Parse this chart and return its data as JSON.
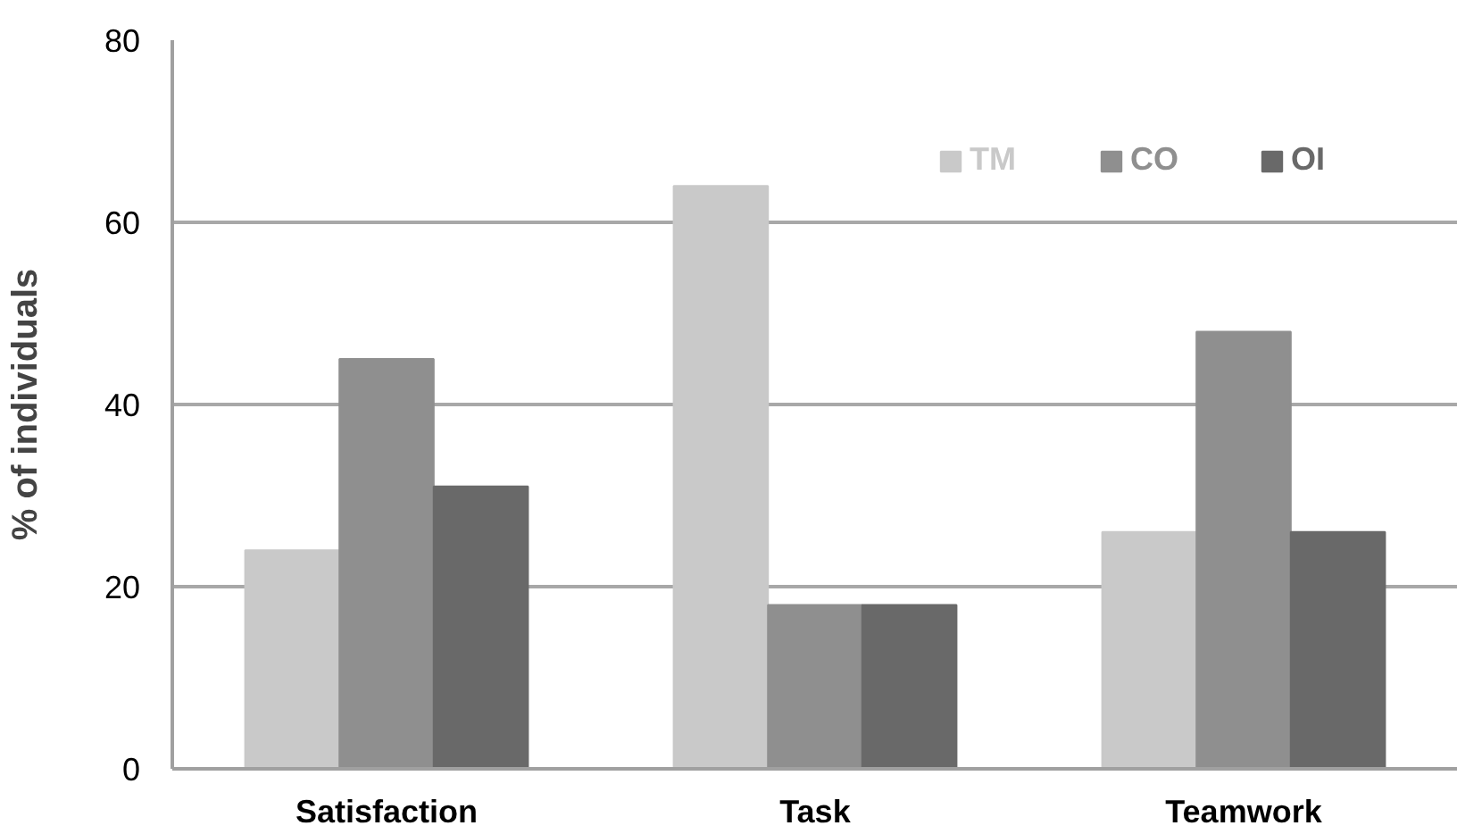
{
  "chart_data": {
    "type": "bar",
    "ylabel": "% of individuals",
    "categories": [
      "Satisfaction",
      "Task",
      "Teamwork"
    ],
    "series": [
      {
        "name": "TM",
        "color": "#c9c9c9",
        "values": [
          24,
          64,
          26
        ]
      },
      {
        "name": "CO",
        "color": "#8f8f8f",
        "values": [
          45,
          18,
          48
        ]
      },
      {
        "name": "OI",
        "color": "#696969",
        "values": [
          31,
          18,
          26
        ]
      }
    ],
    "ylim": [
      0,
      80
    ],
    "yticks": [
      0,
      20,
      40,
      60,
      80
    ],
    "grid": "y",
    "legend": "top right"
  }
}
